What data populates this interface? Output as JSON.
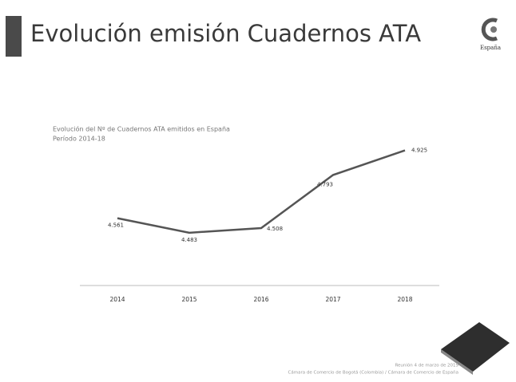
{
  "slide": {
    "title": "Evolución emisión Cuadernos ATA",
    "logo_text": "España",
    "footer": [
      "Reunión 4 de marzo de 2019",
      "Cámara de Comercio de Bogotá (Colombia) / Cámara de Comercio de España"
    ]
  },
  "chart_data": {
    "type": "line",
    "title": "Evolución del Nº de Cuadernos ATA emitidos en España",
    "subtitle": "Período 2014-18",
    "categories": [
      "2014",
      "2015",
      "2016",
      "2017",
      "2018"
    ],
    "series": [
      {
        "name": "Cuadernos ATA",
        "color": "#555555",
        "values": [
          4561,
          4483,
          4508,
          4793,
          4925
        ],
        "value_labels": [
          "4.561",
          "4.483",
          "4.508",
          "4.793",
          "4.925"
        ]
      }
    ],
    "ylim": [
      4200,
      5000
    ],
    "legend": false
  }
}
